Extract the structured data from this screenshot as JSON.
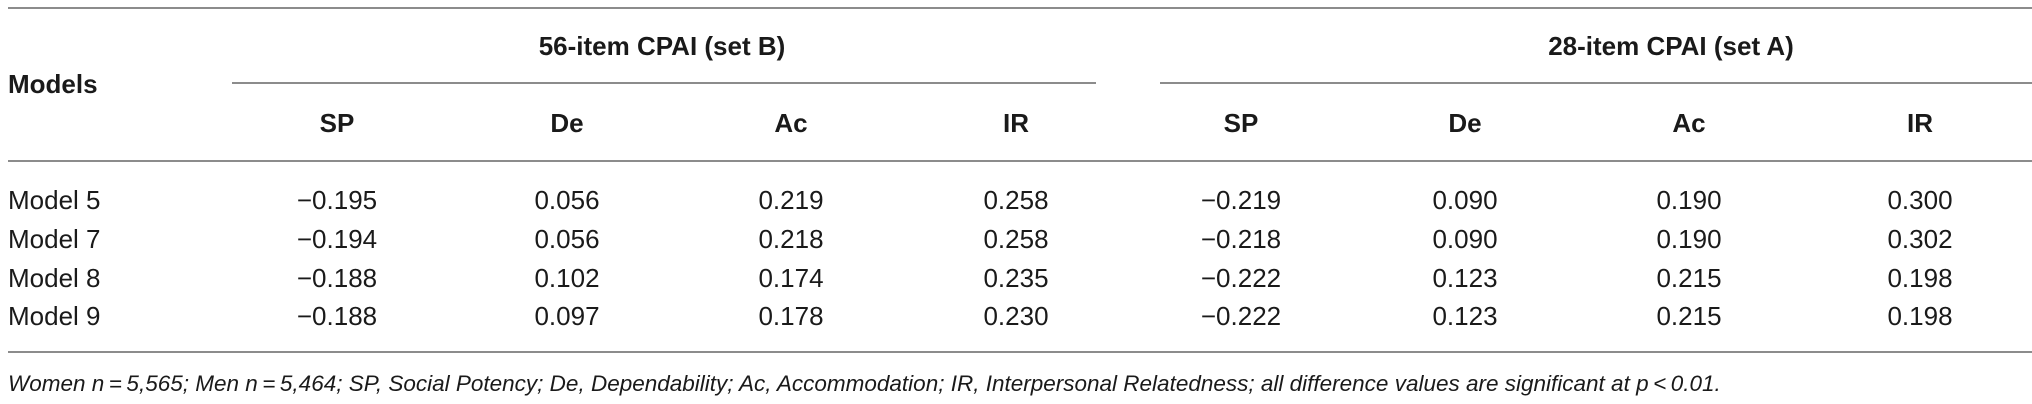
{
  "table": {
    "stub_header": "Models",
    "groups": [
      {
        "label": "56-item CPAI (set B)"
      },
      {
        "label": "28-item CPAI (set A)"
      }
    ],
    "columns": [
      "SP",
      "De",
      "Ac",
      "IR",
      "SP",
      "De",
      "Ac",
      "IR"
    ],
    "rows": [
      {
        "model": "Model 5",
        "values": [
          "−0.195",
          "0.056",
          "0.219",
          "0.258",
          "−0.219",
          "0.090",
          "0.190",
          "0.300"
        ]
      },
      {
        "model": "Model 7",
        "values": [
          "−0.194",
          "0.056",
          "0.218",
          "0.258",
          "−0.218",
          "0.090",
          "0.190",
          "0.302"
        ]
      },
      {
        "model": "Model 8",
        "values": [
          "−0.188",
          "0.102",
          "0.174",
          "0.235",
          "−0.222",
          "0.123",
          "0.215",
          "0.198"
        ]
      },
      {
        "model": "Model 9",
        "values": [
          "−0.188",
          "0.097",
          "0.178",
          "0.230",
          "−0.222",
          "0.123",
          "0.215",
          "0.198"
        ]
      }
    ],
    "footnote": "Women n = 5,565; Men n = 5,464; SP, Social Potency; De, Dependability; Ac, Accommodation; IR, Interpersonal Relatedness; all difference values are significant at p < 0.01."
  }
}
